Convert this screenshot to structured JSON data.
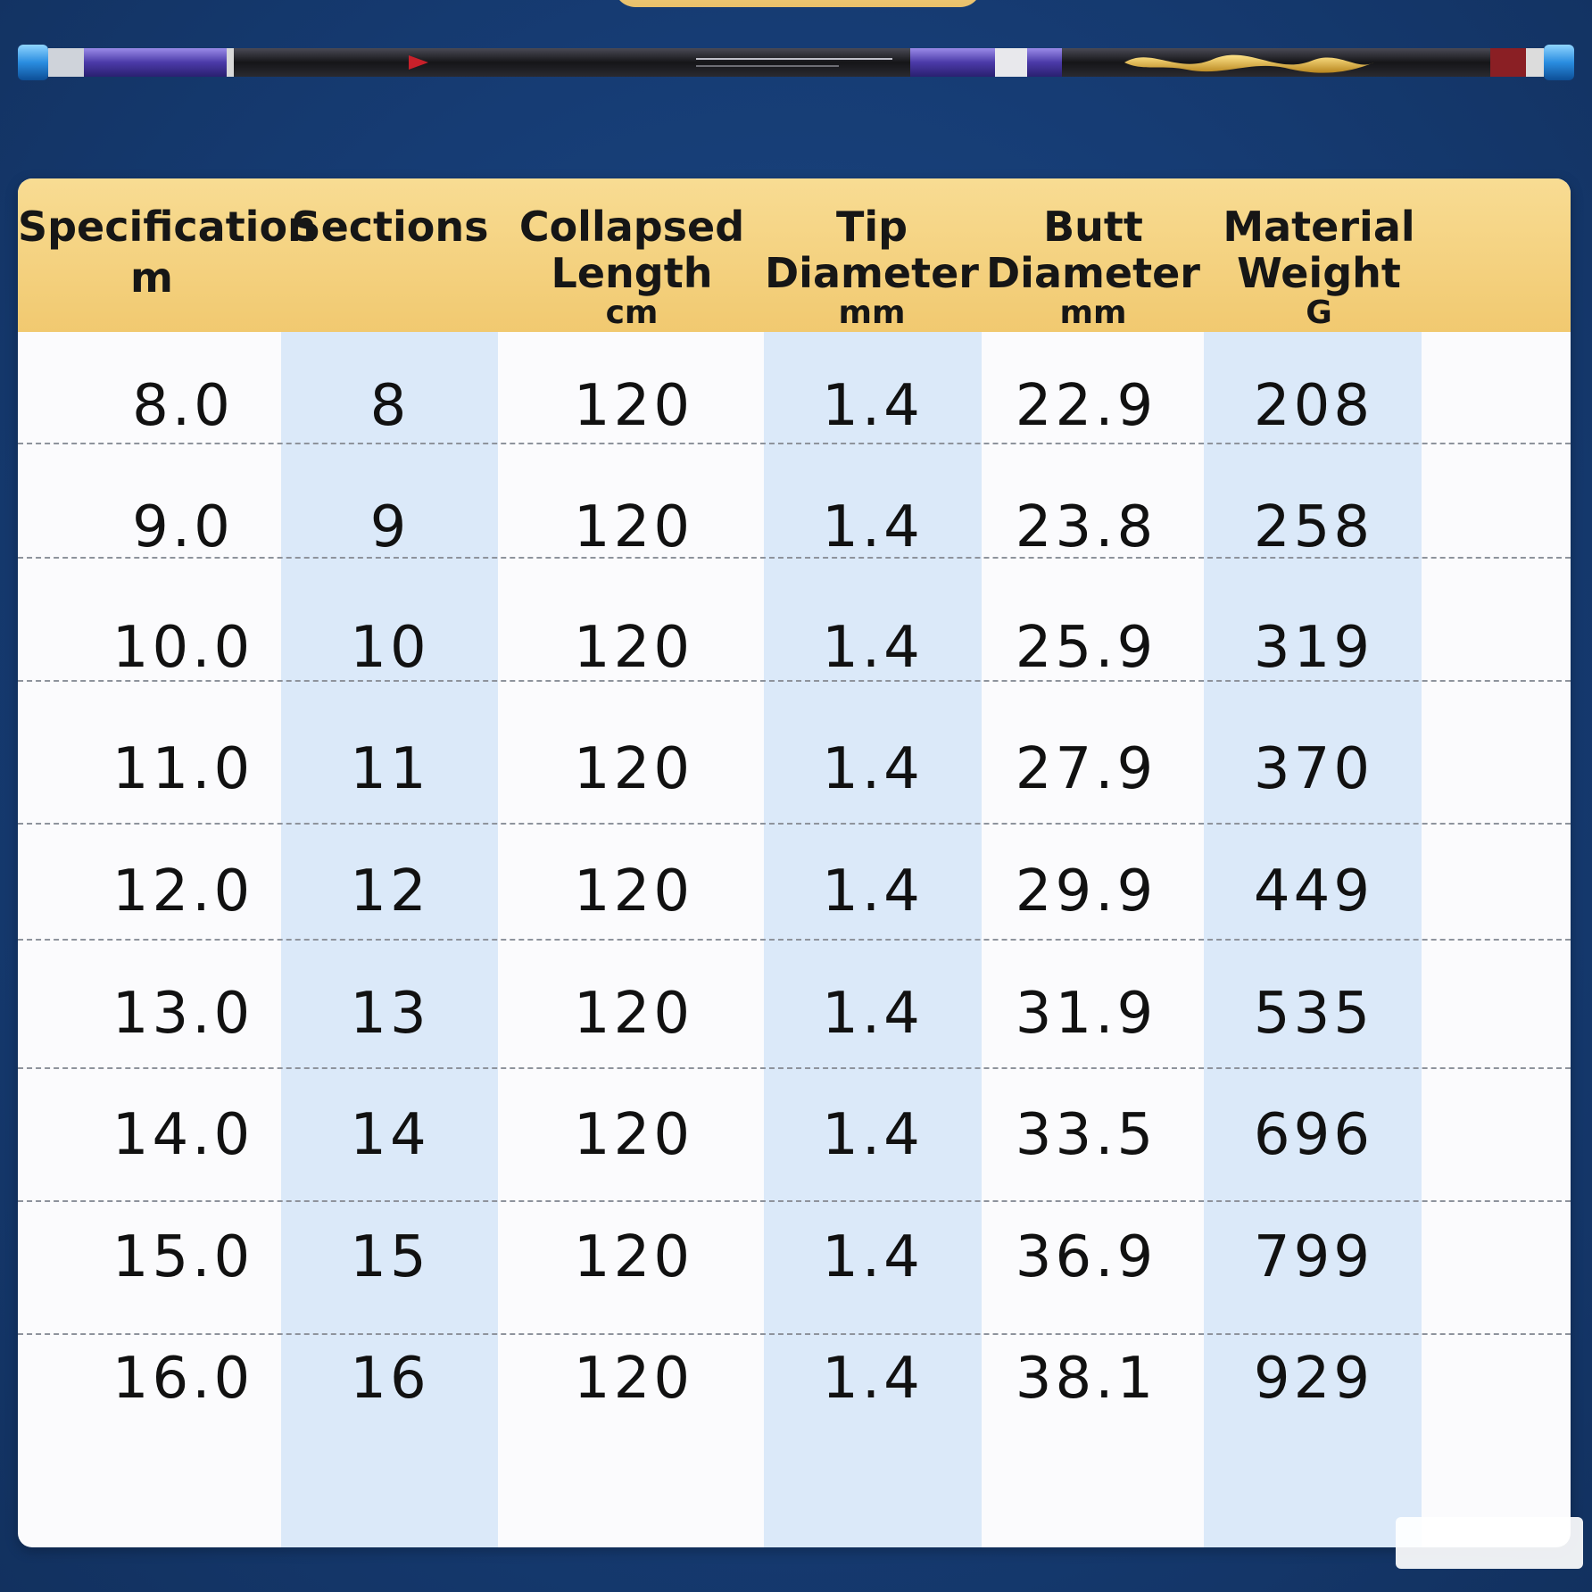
{
  "colors": {
    "background": "#163c74",
    "header_gold": "#f1c970",
    "column_band_blue": "#dbe9f9",
    "table_white": "#fbfbfd"
  },
  "product_image": "telescopic-fishing-rod",
  "table": {
    "headers": [
      {
        "main": "Specification",
        "unit": "m"
      },
      {
        "main": "Sections",
        "unit": ""
      },
      {
        "main": "Collapsed Length",
        "unit": "cm"
      },
      {
        "main": "Tip Diameter",
        "unit": "mm"
      },
      {
        "main": "Butt Diameter",
        "unit": "mm"
      },
      {
        "main": "Material Weight",
        "unit": "G"
      }
    ],
    "rows": [
      [
        "8.0",
        "8",
        "120",
        "1.4",
        "22.9",
        "208"
      ],
      [
        "9.0",
        "9",
        "120",
        "1.4",
        "23.8",
        "258"
      ],
      [
        "10.0",
        "10",
        "120",
        "1.4",
        "25.9",
        "319"
      ],
      [
        "11.0",
        "11",
        "120",
        "1.4",
        "27.9",
        "370"
      ],
      [
        "12.0",
        "12",
        "120",
        "1.4",
        "29.9",
        "449"
      ],
      [
        "13.0",
        "13",
        "120",
        "1.4",
        "31.9",
        "535"
      ],
      [
        "14.0",
        "14",
        "120",
        "1.4",
        "33.5",
        "696"
      ],
      [
        "15.0",
        "15",
        "120",
        "1.4",
        "36.9",
        "799"
      ],
      [
        "16.0",
        "16",
        "120",
        "1.4",
        "38.1",
        "929"
      ]
    ]
  }
}
